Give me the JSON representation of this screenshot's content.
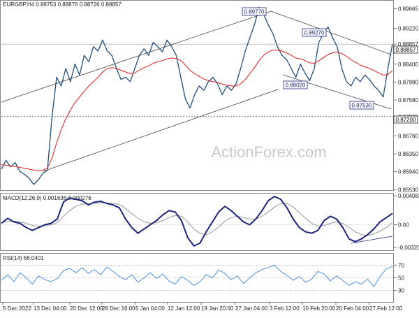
{
  "chart_data": {
    "type": "line",
    "price_panel": {
      "title": "EURGBP,H4  0.88753  0.88876  0.88726  0.88857",
      "ylim": [
        0.8552,
        0.8985
      ],
      "y_ticks": [
        "0.89665",
        "0.89220",
        "0.88857",
        "0.88400",
        "0.87990",
        "0.87580",
        "0.87200",
        "0.86760",
        "0.86350",
        "0.85940",
        "0.85530"
      ],
      "y_tick_values": [
        0.89665,
        0.8922,
        0.88857,
        0.884,
        0.8799,
        0.8758,
        0.872,
        0.8676,
        0.8635,
        0.8594,
        0.8553
      ],
      "current_price_label": "0.88857",
      "current_price": 0.88857,
      "support_label": "0.87200",
      "support_level": 0.872,
      "level_labels": [
        {
          "text": "0.89770",
          "value": 0.8977
        },
        {
          "text": "0.89270",
          "value": 0.8927
        },
        {
          "text": "0.88020",
          "value": 0.8802
        },
        {
          "text": "0.87530",
          "value": 0.8753
        }
      ],
      "watermark": "ActionForex.com",
      "close_series": [
        0.86,
        0.862,
        0.8605,
        0.8615,
        0.8595,
        0.8588,
        0.858,
        0.8565,
        0.8575,
        0.859,
        0.8598,
        0.872,
        0.881,
        0.879,
        0.883,
        0.88,
        0.884,
        0.8815,
        0.886,
        0.8845,
        0.888,
        0.887,
        0.8895,
        0.887,
        0.886,
        0.883,
        0.8805,
        0.881,
        0.88,
        0.883,
        0.886,
        0.8875,
        0.886,
        0.889,
        0.888,
        0.8868,
        0.8895,
        0.888,
        0.886,
        0.881,
        0.876,
        0.874,
        0.877,
        0.879,
        0.878,
        0.88,
        0.881,
        0.8795,
        0.877,
        0.879,
        0.878,
        0.8795,
        0.883,
        0.887,
        0.89,
        0.893,
        0.897,
        0.8955,
        0.893,
        0.891,
        0.888,
        0.886,
        0.885,
        0.883,
        0.881,
        0.884,
        0.882,
        0.8802,
        0.883,
        0.889,
        0.891,
        0.8925,
        0.89,
        0.888,
        0.883,
        0.88,
        0.879,
        0.881,
        0.88,
        0.8815,
        0.8805,
        0.879,
        0.878,
        0.8765,
        0.883,
        0.8886
      ],
      "ma_series": [
        0.861,
        0.8609,
        0.8607,
        0.8606,
        0.8604,
        0.8602,
        0.86,
        0.8598,
        0.8596,
        0.8598,
        0.8602,
        0.8625,
        0.866,
        0.869,
        0.8715,
        0.8735,
        0.8752,
        0.8765,
        0.8778,
        0.879,
        0.88,
        0.881,
        0.8822,
        0.883,
        0.8832,
        0.883,
        0.8826,
        0.8822,
        0.8818,
        0.882,
        0.8826,
        0.8832,
        0.8836,
        0.8842,
        0.8846,
        0.8848,
        0.8852,
        0.8854,
        0.8853,
        0.8848,
        0.8838,
        0.8826,
        0.8818,
        0.8812,
        0.8806,
        0.8802,
        0.88,
        0.8798,
        0.8794,
        0.8792,
        0.879,
        0.879,
        0.8795,
        0.8805,
        0.8818,
        0.8832,
        0.8848,
        0.886,
        0.8868,
        0.8872,
        0.8872,
        0.887,
        0.8866,
        0.886,
        0.8854,
        0.8852,
        0.8848,
        0.8843,
        0.8842,
        0.8848,
        0.8855,
        0.8862,
        0.8866,
        0.8867,
        0.8864,
        0.8858,
        0.885,
        0.8844,
        0.8838,
        0.8834,
        0.883,
        0.8825,
        0.882,
        0.8815,
        0.8816,
        0.8825
      ]
    },
    "macd_panel": {
      "title": "MACD(12,26,9)  0.001638  0.000276",
      "ylim": [
        -0.0036,
        0.0044
      ],
      "y_ticks": [
        "0.004083",
        "0.00",
        "-0.003209"
      ],
      "y_tick_values": [
        0.004083,
        0.0,
        -0.003209
      ],
      "macd_series": [
        0.0002,
        0.0009,
        0.0004,
        0.0002,
        -0.0004,
        -0.0008,
        -0.0004,
        0.0,
        0.0002,
        0.0008,
        0.0032,
        0.0038,
        0.0036,
        0.0034,
        0.0028,
        0.0032,
        0.0033,
        0.003,
        0.0028,
        0.0024,
        0.0008,
        -0.0004,
        -0.0012,
        -0.0006,
        0.0,
        0.0006,
        0.0014,
        0.002,
        0.0018,
        0.0006,
        -0.0018,
        -0.003,
        -0.0026,
        -0.001,
        0.0004,
        0.0018,
        0.0026,
        0.002,
        0.0012,
        0.0004,
        0.0,
        0.0008,
        0.002,
        0.0034,
        0.004,
        0.0036,
        0.0024,
        0.0008,
        -0.0004,
        -0.001,
        -0.0012,
        -0.0008,
        0.0006,
        0.0012,
        0.0008,
        -0.0004,
        -0.002,
        -0.0024,
        -0.002,
        -0.0014,
        -0.0006,
        0.0004,
        0.001,
        0.0016
      ],
      "signal_series": [
        0.0003,
        0.0005,
        0.0005,
        0.0004,
        0.0002,
        -0.0001,
        -0.0002,
        -0.0001,
        0.0,
        0.0003,
        0.0012,
        0.002,
        0.0026,
        0.0029,
        0.003,
        0.003,
        0.0031,
        0.0031,
        0.003,
        0.0029,
        0.0023,
        0.0016,
        0.0009,
        0.0004,
        0.0002,
        0.0003,
        0.0006,
        0.001,
        0.0013,
        0.0012,
        0.0004,
        -0.0006,
        -0.0012,
        -0.0014,
        -0.001,
        -0.0003,
        0.0005,
        0.001,
        0.0012,
        0.001,
        0.0008,
        0.0008,
        0.0012,
        0.0018,
        0.0025,
        0.003,
        0.003,
        0.0025,
        0.0017,
        0.0009,
        0.0002,
        -0.0002,
        -0.0001,
        0.0002,
        0.0004,
        0.0002,
        -0.0004,
        -0.001,
        -0.0014,
        -0.0015,
        -0.0013,
        -0.0009,
        -0.0004,
        0.0003
      ]
    },
    "rsi_panel": {
      "title": "RSI(14) 68.0401",
      "ylim": [
        12,
        88
      ],
      "y_ticks": [
        "70",
        "50",
        "30"
      ],
      "y_tick_values": [
        70,
        50,
        30
      ],
      "rsi_series": [
        46,
        55,
        44,
        58,
        50,
        40,
        53,
        47,
        44,
        49,
        61,
        65,
        58,
        66,
        57,
        63,
        55,
        67,
        60,
        52,
        47,
        55,
        43,
        50,
        58,
        49,
        56,
        45,
        40,
        52,
        46,
        38,
        44,
        55,
        50,
        62,
        57,
        47,
        53,
        41,
        50,
        58,
        63,
        66,
        70,
        60,
        54,
        46,
        52,
        43,
        48,
        60,
        56,
        45,
        53,
        46,
        38,
        44,
        40,
        48,
        36,
        52,
        64,
        68
      ]
    },
    "x_labels": [
      "5 Dec 2022",
      "13 Dec 04:00",
      "20 Dec 12:00",
      "28 Dec 16:00",
      "5 Jan 04:00",
      "12 Jan 12:00",
      "19 Jan 20:00",
      "27 Jan 04:00",
      "3 Feb 12:00",
      "10 Feb 20:00",
      "20 Feb 04:00",
      "27 Feb 12:00"
    ]
  },
  "colors": {
    "price": "#1f4e79",
    "ma": "#e21b1b",
    "macd": "#1a237e",
    "signal": "#999999",
    "rsi": "#4a90e2",
    "grid": "#c8c8c8",
    "trendline": "#444444",
    "label_box": "#1a237e",
    "watermark": "#c8c8c8"
  }
}
